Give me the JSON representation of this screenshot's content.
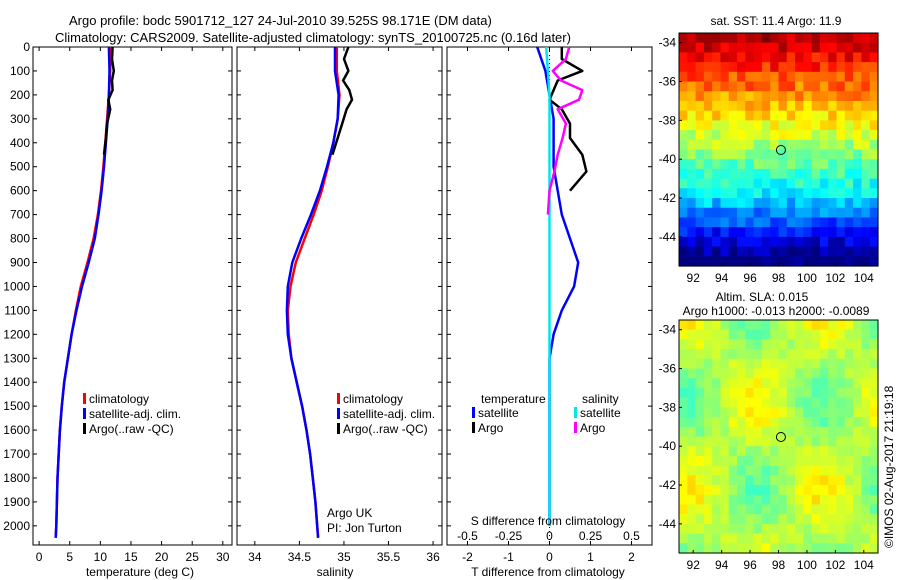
{
  "title_line1": "Argo profile: bodc 5901712_127 24-Jul-2010 39.525S 98.171E (DM data)",
  "title_line2": "Climatology: CARS2009. Satellite-adjusted climatology: synTS_20100725.nc (0.16d later)",
  "colors": {
    "climatology": "#ff0000",
    "satellite": "#0000ff",
    "argo": "#000000",
    "sal_satellite": "#00e5ee",
    "sal_argo": "#ff00ff"
  },
  "chart_data": [
    {
      "type": "line",
      "name": "temperature",
      "xlabel": "temperature (deg C)",
      "xlim": [
        -1,
        31.5
      ],
      "xticks": [
        0,
        5,
        10,
        15,
        20,
        25,
        30
      ],
      "ylim": [
        0,
        2080
      ],
      "yticks": [
        0,
        100,
        200,
        300,
        400,
        500,
        600,
        700,
        800,
        900,
        1000,
        1100,
        1200,
        1300,
        1400,
        1500,
        1600,
        1700,
        1800,
        1900,
        2000
      ],
      "legend": [
        "climatology",
        "satellite-adj. clim.",
        "Argo(..raw -QC)"
      ],
      "series": [
        {
          "name": "climatology",
          "color": "#ff0000",
          "x": [
            11.7,
            11.6,
            11.4,
            11.1,
            10.8,
            10.5,
            10.1,
            9.6,
            8.9,
            7.9,
            6.8,
            6.0,
            5.3,
            4.7,
            4.1,
            3.7,
            3.4,
            3.2,
            3.0,
            2.9,
            2.8,
            2.7
          ],
          "y": [
            0,
            100,
            200,
            300,
            400,
            500,
            600,
            700,
            800,
            900,
            1000,
            1100,
            1200,
            1300,
            1400,
            1500,
            1600,
            1700,
            1800,
            1900,
            2000,
            2050
          ]
        },
        {
          "name": "satellite-adj. clim.",
          "color": "#0000ff",
          "x": [
            11.4,
            11.5,
            11.4,
            11.2,
            10.9,
            10.6,
            10.2,
            9.7,
            9.1,
            8.1,
            7.0,
            6.1,
            5.3,
            4.7,
            4.1,
            3.7,
            3.4,
            3.2,
            3.0,
            2.9,
            2.8,
            2.7
          ],
          "y": [
            0,
            100,
            200,
            300,
            400,
            500,
            600,
            700,
            800,
            900,
            1000,
            1100,
            1200,
            1300,
            1400,
            1500,
            1600,
            1700,
            1800,
            1900,
            2000,
            2050
          ]
        },
        {
          "name": "Argo",
          "color": "#000000",
          "x": [
            12.0,
            11.9,
            12.2,
            11.9,
            12.0,
            11.3,
            11.6,
            11.1,
            10.9,
            10.6
          ],
          "y": [
            0,
            50,
            100,
            140,
            180,
            220,
            260,
            320,
            380,
            450
          ]
        }
      ]
    },
    {
      "type": "line",
      "name": "salinity",
      "xlabel": "salinity",
      "xlim": [
        33.8,
        36.1
      ],
      "xticks": [
        34,
        34.5,
        35,
        35.5,
        36
      ],
      "ylim": [
        0,
        2080
      ],
      "legend": [
        "climatology",
        "satellite-adj. clim.",
        "Argo(..raw -QC)"
      ],
      "annotation": [
        "Argo UK",
        "PI: Jon Turton"
      ],
      "series": [
        {
          "name": "climatology",
          "color": "#ff0000",
          "x": [
            34.92,
            34.92,
            34.95,
            34.93,
            34.88,
            34.82,
            34.75,
            34.66,
            34.56,
            34.46,
            34.4,
            34.37,
            34.38,
            34.41,
            34.47,
            34.53,
            34.58,
            34.62,
            34.65,
            34.68,
            34.7,
            34.71
          ],
          "y": [
            0,
            100,
            200,
            300,
            400,
            500,
            600,
            700,
            800,
            900,
            1000,
            1100,
            1200,
            1300,
            1400,
            1500,
            1600,
            1700,
            1800,
            1900,
            2000,
            2050
          ]
        },
        {
          "name": "satellite-adj. clim.",
          "color": "#0000ff",
          "x": [
            34.9,
            34.9,
            34.94,
            34.93,
            34.88,
            34.81,
            34.73,
            34.63,
            34.52,
            34.42,
            34.37,
            34.36,
            34.37,
            34.41,
            34.47,
            34.53,
            34.58,
            34.62,
            34.65,
            34.68,
            34.7,
            34.71
          ],
          "y": [
            0,
            100,
            200,
            300,
            400,
            500,
            600,
            700,
            800,
            900,
            1000,
            1100,
            1200,
            1300,
            1400,
            1500,
            1600,
            1700,
            1800,
            1900,
            2000,
            2050
          ]
        },
        {
          "name": "Argo",
          "color": "#000000",
          "x": [
            35.05,
            35.0,
            35.05,
            34.99,
            35.06,
            35.09,
            35.03,
            34.98,
            34.93,
            34.87
          ],
          "y": [
            0,
            50,
            100,
            140,
            180,
            220,
            260,
            320,
            380,
            450
          ]
        }
      ]
    },
    {
      "type": "line",
      "name": "difference",
      "xlabel": "T difference from climatology",
      "xlabel2": "S difference from climatology",
      "xlim": [
        -2.5,
        2.5
      ],
      "xticks": [
        -2,
        -1,
        0,
        1,
        2
      ],
      "xlim2": [
        -0.625,
        0.625
      ],
      "xticks2": [
        -0.5,
        -0.25,
        0,
        0.25,
        0.5
      ],
      "ylim": [
        0,
        2080
      ],
      "legend_temperature_title": "temperature",
      "legend_salinity_title": "salinity",
      "legend_satellite": "satellite",
      "legend_argo": "Argo",
      "series": [
        {
          "name": "temperature satellite",
          "color": "#0000ff",
          "x": [
            -0.3,
            -0.1,
            0.0,
            0.1,
            0.1,
            0.1,
            0.2,
            0.3,
            0.5,
            0.7,
            0.6,
            0.3,
            0.1,
            0.0,
            0.0,
            0.0,
            0.0,
            0.0,
            0.0,
            0.0,
            0.0
          ],
          "y": [
            0,
            100,
            200,
            300,
            400,
            500,
            600,
            700,
            800,
            900,
            1000,
            1100,
            1200,
            1300,
            1400,
            1500,
            1600,
            1700,
            1800,
            1900,
            2000
          ]
        },
        {
          "name": "temperature Argo",
          "color": "#000000",
          "x": [
            0.3,
            0.3,
            0.8,
            0.2,
            0.1,
            0.0,
            0.3,
            0.5,
            0.5,
            0.8,
            0.9,
            0.5
          ],
          "y": [
            0,
            50,
            100,
            140,
            180,
            220,
            260,
            320,
            380,
            450,
            520,
            600
          ]
        },
        {
          "name": "salinity satellite",
          "color": "#00e5ee",
          "x": [
            -0.02,
            -0.01,
            0.0,
            0.0,
            0.0,
            0.0,
            0.0,
            0.0,
            0.0,
            0.0,
            0.0,
            0.0,
            0.0,
            0.0,
            0.0,
            0.0,
            0.0,
            0.0,
            0.0,
            0.0,
            0.0
          ],
          "y": [
            0,
            100,
            200,
            300,
            400,
            500,
            600,
            700,
            800,
            900,
            1000,
            1100,
            1200,
            1300,
            1400,
            1500,
            1600,
            1700,
            1800,
            1900,
            2000
          ]
        },
        {
          "name": "salinity Argo",
          "color": "#ff00ff",
          "x": [
            0.12,
            0.1,
            0.02,
            0.07,
            0.2,
            0.18,
            0.05,
            0.1,
            0.08,
            0.05,
            0.03,
            0.0,
            -0.01
          ],
          "y": [
            0,
            50,
            100,
            140,
            180,
            220,
            260,
            320,
            380,
            450,
            520,
            600,
            700
          ]
        }
      ]
    },
    {
      "type": "heatmap",
      "name": "sst_map",
      "title": "sat. SST: 11.4  Argo: 11.9",
      "xticks": [
        92,
        94,
        96,
        98,
        100,
        102,
        104
      ],
      "yticks": [
        -34,
        -36,
        -38,
        -40,
        -42,
        -44
      ],
      "xlim": [
        91,
        105
      ],
      "ylim": [
        -45.5,
        -33.5
      ],
      "marker": [
        98.171,
        -39.525
      ]
    },
    {
      "type": "heatmap",
      "name": "sla_map",
      "title": "Altim. SLA: 0.015",
      "subtitle": "Argo h1000: -0.013 h2000: -0.0089",
      "xticks": [
        92,
        94,
        96,
        98,
        100,
        102,
        104
      ],
      "yticks": [
        -34,
        -36,
        -38,
        -40,
        -42,
        -44
      ],
      "xlim": [
        91,
        105
      ],
      "ylim": [
        -45.5,
        -33.5
      ],
      "marker": [
        98.171,
        -39.525
      ]
    }
  ],
  "footer_stamp": "©IMOS 02-Aug-2017 21:19:18"
}
